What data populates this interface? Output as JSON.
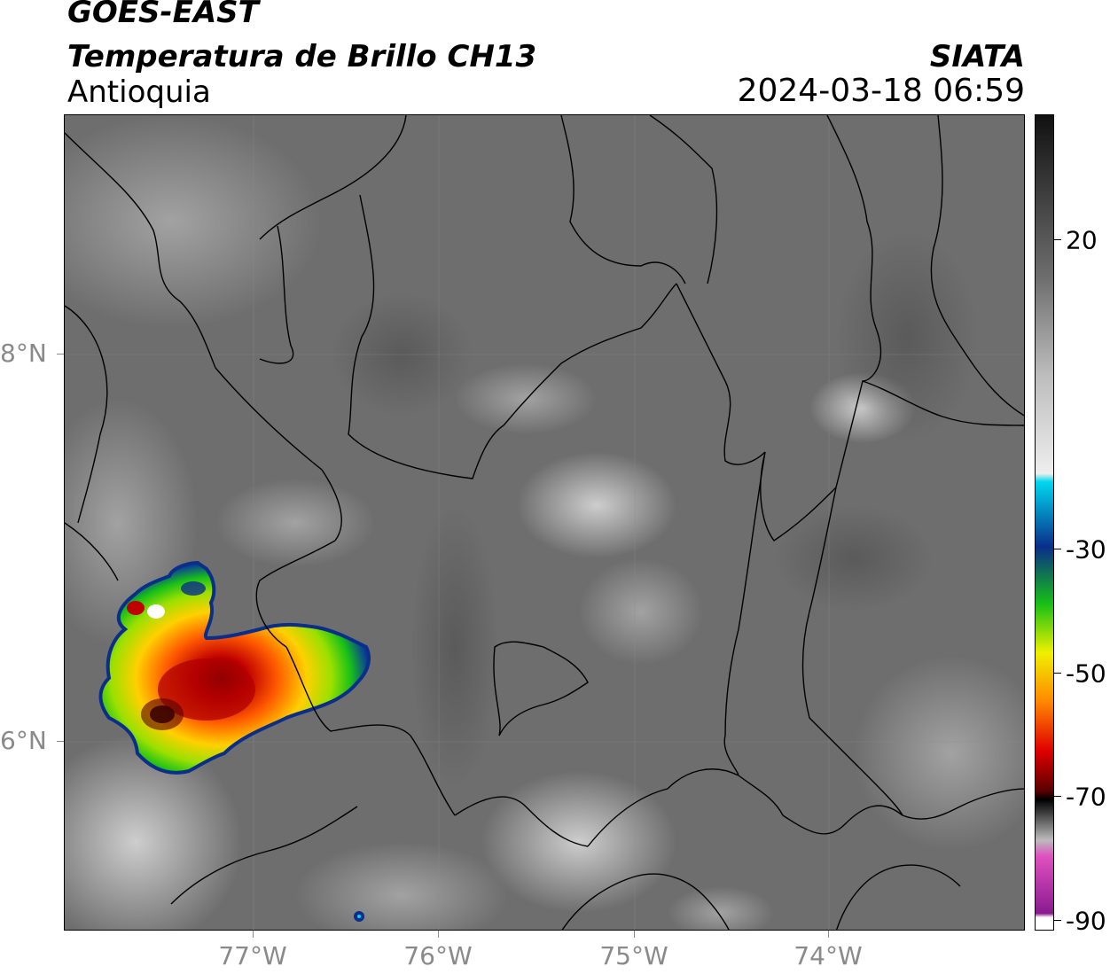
{
  "header": {
    "line1": "GOES-EAST",
    "line2": "Temperatura de Brillo CH13",
    "line3": "Antioquia",
    "agency": "SIATA",
    "timestamp": "2024-03-18 06:59"
  },
  "map": {
    "lat_labels": [
      {
        "label": "8°N",
        "lat": 8
      },
      {
        "label": "6°N",
        "lat": 6
      }
    ],
    "lon_labels": [
      {
        "label": "77°W",
        "lon": -77
      },
      {
        "label": "76°W",
        "lon": -76
      },
      {
        "label": "75°W",
        "lon": -75
      },
      {
        "label": "74°W",
        "lon": -74
      }
    ]
  },
  "colorbar": {
    "labels": [
      {
        "label": "20",
        "value": 20
      },
      {
        "label": "-30",
        "value": -30
      },
      {
        "label": "-50",
        "value": -50
      },
      {
        "label": "-70",
        "value": -70
      },
      {
        "label": "-90",
        "value": -90
      }
    ],
    "colors": {
      "warm_gray": "#6e6e6e",
      "light": "#eeeeee",
      "cyan": "#00d8f0",
      "blue": "#0a2e8a",
      "green": "#16c016",
      "yellow": "#f0f000",
      "orange": "#ff8800",
      "red": "#e00000",
      "darkred": "#5a0000",
      "black": "#000000",
      "pink": "#e050c0",
      "purple": "#8a1a90"
    }
  }
}
